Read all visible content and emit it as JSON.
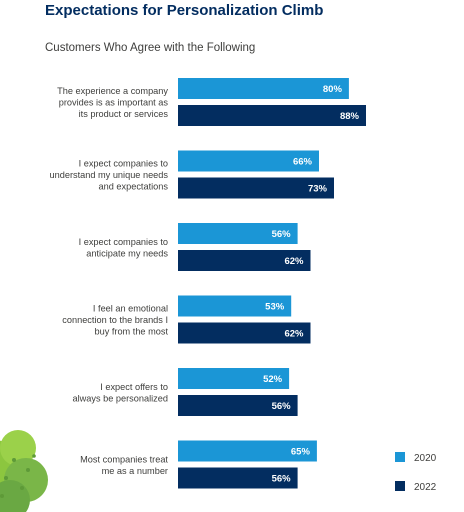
{
  "header": {
    "title": "Expectations for Personalization Climb",
    "subtitle": "Customers Who Agree with the Following"
  },
  "chart_data": {
    "type": "bar",
    "orientation": "horizontal",
    "title": "Expectations for Personalization Climb",
    "subtitle": "Customers Who Agree with the Following",
    "categories": [
      [
        "The experience a company",
        "provides is as important as",
        "its product or services"
      ],
      [
        "I expect companies to",
        "understand my unique needs",
        "and expectations"
      ],
      [
        "I expect companies to",
        "anticipate my needs"
      ],
      [
        "I feel an emotional",
        "connection to the brands I",
        "buy from the most"
      ],
      [
        "I expect offers to",
        "always be personalized"
      ],
      [
        "Most companies treat",
        "me as a number"
      ]
    ],
    "series": [
      {
        "name": "2020",
        "color": "#1b96d6",
        "values": [
          80,
          66,
          56,
          53,
          52,
          65
        ],
        "labels": [
          "80%",
          "66%",
          "56%",
          "53%",
          "52%",
          "65%"
        ]
      },
      {
        "name": "2022",
        "color": "#032d60",
        "values": [
          88,
          73,
          62,
          62,
          56,
          56
        ],
        "labels": [
          "88%",
          "73%",
          "62%",
          "62%",
          "56%",
          "56%"
        ]
      }
    ],
    "xlim": [
      0,
      100
    ],
    "grid": false,
    "legend": "bottom-right",
    "decoration": "green-tree-icon"
  }
}
